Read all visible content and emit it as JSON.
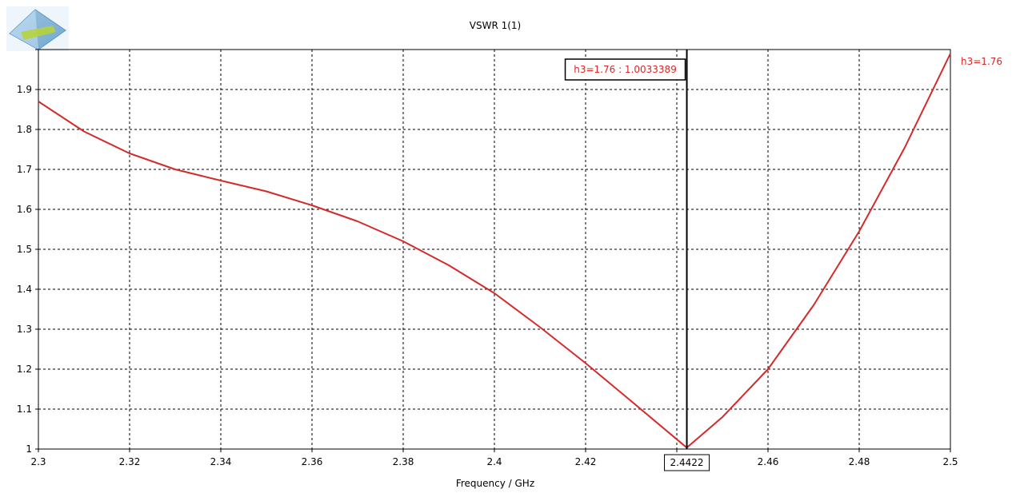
{
  "chart_data": {
    "type": "line",
    "title": "VSWR 1(1)",
    "xlabel": "Frequency / GHz",
    "ylabel": "",
    "xlim": [
      2.3,
      2.5
    ],
    "ylim": [
      1,
      2
    ],
    "x_ticks": [
      2.3,
      2.32,
      2.34,
      2.36,
      2.38,
      2.4,
      2.42,
      2.44,
      2.46,
      2.48,
      2.5
    ],
    "x_tick_labels": [
      "2.3",
      "2.32",
      "2.34",
      "2.36",
      "2.38",
      "2.4",
      "2.42",
      "",
      "2.46",
      "2.48",
      "2.5"
    ],
    "y_ticks": [
      1,
      1.1,
      1.2,
      1.3,
      1.4,
      1.5,
      1.6,
      1.7,
      1.8,
      1.9,
      2
    ],
    "y_tick_labels": [
      "1",
      "1.1",
      "1.2",
      "1.3",
      "1.4",
      "1.5",
      "1.6",
      "1.7",
      "1.8",
      "1.9",
      ""
    ],
    "grid": true,
    "series": [
      {
        "name": "h3=1.76",
        "color": "#d42a2a",
        "x": [
          2.3,
          2.31,
          2.32,
          2.33,
          2.34,
          2.35,
          2.36,
          2.37,
          2.38,
          2.39,
          2.4,
          2.41,
          2.42,
          2.43,
          2.4422,
          2.45,
          2.46,
          2.47,
          2.48,
          2.49,
          2.5
        ],
        "y": [
          1.87,
          1.795,
          1.74,
          1.7,
          1.672,
          1.645,
          1.61,
          1.57,
          1.52,
          1.46,
          1.39,
          1.305,
          1.215,
          1.12,
          1.0033389,
          1.08,
          1.2,
          1.36,
          1.545,
          1.755,
          1.99
        ]
      }
    ],
    "marker": {
      "x": 2.4422,
      "x_label": "2.4422",
      "readout": "h3=1.76 : 1.0033389",
      "color": "#000000"
    }
  },
  "logo": {
    "name": "cst-logo-icon"
  }
}
